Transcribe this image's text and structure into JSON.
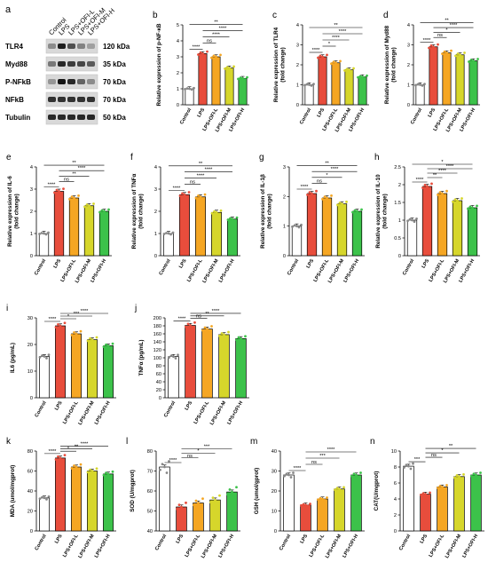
{
  "group_labels": [
    "Control",
    "LPS",
    "LPS+OFI-L",
    "LPS+OFI-M",
    "LPS+OFI-H"
  ],
  "colors": {
    "control": "#ffffff",
    "lps": "#e84d3c",
    "ofi_l": "#f5a623",
    "ofi_m": "#d6d62b",
    "ofi_h": "#3cc24a"
  },
  "blot": {
    "label": "a",
    "lanes": [
      "Control",
      "LPS",
      "LPS+OFI-L",
      "LPS+OFI-M",
      "LPS+OFI-H"
    ],
    "bands": [
      {
        "name": "TLR4",
        "size": "120 kDa",
        "intensity": [
          0.35,
          0.9,
          0.65,
          0.4,
          0.25
        ]
      },
      {
        "name": "Myd88",
        "size": "35 kDa",
        "intensity": [
          0.45,
          0.85,
          0.75,
          0.7,
          0.6
        ]
      },
      {
        "name": "P-NFkB",
        "size": "70 kDa",
        "intensity": [
          0.3,
          0.95,
          0.85,
          0.55,
          0.35
        ]
      },
      {
        "name": "NFkB",
        "size": "70 kDa",
        "intensity": [
          0.8,
          0.8,
          0.8,
          0.8,
          0.8
        ]
      },
      {
        "name": "Tubulin",
        "size": "50 kDa",
        "intensity": [
          0.85,
          0.85,
          0.85,
          0.85,
          0.85
        ]
      }
    ]
  },
  "chart_data": [
    {
      "type": "bar",
      "label": "b",
      "ylabel": "Relative expression of p-NF-κB",
      "ylim": [
        0,
        5
      ],
      "yticks": [
        0,
        1,
        2,
        3,
        4,
        5
      ],
      "categories": [
        "Control",
        "LPS",
        "LPS+OFI-L",
        "LPS+OFI-M",
        "LPS+OFI-H"
      ],
      "values": [
        1.0,
        3.2,
        3.0,
        2.3,
        1.65
      ],
      "significance": [
        [
          "Control",
          "LPS",
          "****"
        ],
        [
          "LPS",
          "LPS+OFI-L",
          "ns"
        ],
        [
          "LPS",
          "LPS+OFI-M",
          "****"
        ],
        [
          "LPS",
          "LPS+OFI-H",
          "****"
        ],
        [
          "Control",
          "LPS+OFI-H",
          "**"
        ]
      ]
    },
    {
      "type": "bar",
      "label": "c",
      "ylabel": "Relative expression of TLR4 (fold change)",
      "ylim": [
        0,
        4
      ],
      "yticks": [
        0,
        1,
        2,
        3,
        4
      ],
      "categories": [
        "Control",
        "LPS",
        "LPS+OFI-L",
        "LPS+OFI-M",
        "LPS+OFI-H"
      ],
      "values": [
        1.0,
        2.4,
        2.1,
        1.75,
        1.4
      ],
      "significance": [
        [
          "Control",
          "LPS",
          "****"
        ],
        [
          "LPS",
          "LPS+OFI-L",
          "*"
        ],
        [
          "LPS",
          "LPS+OFI-M",
          "****"
        ],
        [
          "LPS",
          "LPS+OFI-H",
          "****"
        ],
        [
          "Control",
          "LPS+OFI-H",
          "**"
        ]
      ]
    },
    {
      "type": "bar",
      "label": "d",
      "ylabel": "Relative expression of Myd88 (fold change)",
      "ylim": [
        0,
        4
      ],
      "yticks": [
        0,
        1,
        2,
        3,
        4
      ],
      "categories": [
        "Control",
        "LPS",
        "LPS+OFI-L",
        "LPS+OFI-M",
        "LPS+OFI-H"
      ],
      "values": [
        1.0,
        2.9,
        2.6,
        2.5,
        2.2
      ],
      "significance": [
        [
          "Control",
          "LPS",
          "****"
        ],
        [
          "LPS",
          "LPS+OFI-L",
          "ns"
        ],
        [
          "LPS",
          "LPS+OFI-M",
          "*"
        ],
        [
          "LPS",
          "LPS+OFI-H",
          "****"
        ],
        [
          "Control",
          "LPS+OFI-H",
          "**"
        ]
      ]
    },
    {
      "type": "bar",
      "label": "e",
      "ylabel": "Relative expression of IL-6 (fold change)",
      "ylim": [
        0,
        4
      ],
      "yticks": [
        0,
        1,
        2,
        3,
        4
      ],
      "categories": [
        "Control",
        "LPS",
        "LPS+OFI-L",
        "LPS+OFI-M",
        "LPS+OFI-H"
      ],
      "values": [
        1.0,
        2.9,
        2.6,
        2.25,
        2.0
      ],
      "significance": [
        [
          "Control",
          "LPS",
          "****"
        ],
        [
          "LPS",
          "LPS+OFI-L",
          "ns"
        ],
        [
          "LPS",
          "LPS+OFI-M",
          "**"
        ],
        [
          "LPS",
          "LPS+OFI-H",
          "****"
        ],
        [
          "Control",
          "LPS+OFI-H",
          "**"
        ]
      ]
    },
    {
      "type": "bar",
      "label": "f",
      "ylabel": "Relative expression of TNFα (fold change)",
      "ylim": [
        0,
        4
      ],
      "yticks": [
        0,
        1,
        2,
        3,
        4
      ],
      "categories": [
        "Control",
        "LPS",
        "LPS+OFI-L",
        "LPS+OFI-M",
        "LPS+OFI-H"
      ],
      "values": [
        1.0,
        2.75,
        2.65,
        1.95,
        1.65
      ],
      "significance": [
        [
          "Control",
          "LPS",
          "****"
        ],
        [
          "LPS",
          "LPS+OFI-L",
          "ns"
        ],
        [
          "LPS",
          "LPS+OFI-M",
          "****"
        ],
        [
          "LPS",
          "LPS+OFI-H",
          "****"
        ],
        [
          "Control",
          "LPS+OFI-H",
          "**"
        ]
      ]
    },
    {
      "type": "bar",
      "label": "g",
      "ylabel": "Relative expression of IL-1β (fold change)",
      "ylim": [
        0,
        3
      ],
      "yticks": [
        0,
        1,
        2,
        3
      ],
      "categories": [
        "Control",
        "LPS",
        "LPS+OFI-L",
        "LPS+OFI-M",
        "LPS+OFI-H"
      ],
      "values": [
        1.0,
        2.1,
        1.95,
        1.75,
        1.5
      ],
      "significance": [
        [
          "Control",
          "LPS",
          "****"
        ],
        [
          "LPS",
          "LPS+OFI-L",
          "ns"
        ],
        [
          "LPS",
          "LPS+OFI-M",
          "*"
        ],
        [
          "LPS",
          "LPS+OFI-H",
          "****"
        ],
        [
          "Control",
          "LPS+OFI-H",
          "**"
        ]
      ]
    },
    {
      "type": "bar",
      "label": "h",
      "ylabel": "Relative expression of IL-10 (fold change)",
      "ylim": [
        0,
        2.5
      ],
      "yticks": [
        0.0,
        0.5,
        1.0,
        1.5,
        2.0,
        2.5
      ],
      "categories": [
        "Control",
        "LPS",
        "LPS+OFI-L",
        "LPS+OFI-M",
        "LPS+OFI-H"
      ],
      "values": [
        1.0,
        1.95,
        1.75,
        1.55,
        1.35
      ],
      "significance": [
        [
          "Control",
          "LPS",
          "****"
        ],
        [
          "LPS",
          "LPS+OFI-L",
          "**"
        ],
        [
          "LPS",
          "LPS+OFI-M",
          "****"
        ],
        [
          "LPS",
          "LPS+OFI-H",
          "****"
        ],
        [
          "Control",
          "LPS+OFI-H",
          "*"
        ]
      ]
    },
    {
      "type": "bar",
      "label": "i",
      "ylabel": "IL6 (pg/mL)",
      "ylim": [
        0,
        30
      ],
      "yticks": [
        0,
        10,
        20,
        30
      ],
      "categories": [
        "Control",
        "LPS",
        "LPS+OFI-L",
        "LPS+OFI-M",
        "LPS+OFI-H"
      ],
      "values": [
        15.5,
        27.0,
        24.0,
        21.8,
        19.5
      ],
      "significance": [
        [
          "Control",
          "LPS",
          "****"
        ],
        [
          "LPS",
          "LPS+OFI-L",
          "*"
        ],
        [
          "LPS",
          "LPS+OFI-M",
          "***"
        ],
        [
          "LPS",
          "LPS+OFI-H",
          "****"
        ]
      ]
    },
    {
      "type": "bar",
      "label": "j",
      "ylabel": "TNFα (pg/mL)",
      "ylim": [
        0,
        200
      ],
      "yticks": [
        0,
        20,
        40,
        60,
        80,
        100,
        120,
        140,
        160,
        180,
        200
      ],
      "categories": [
        "Control",
        "LPS",
        "LPS+OFI-L",
        "LPS+OFI-M",
        "LPS+OFI-H"
      ],
      "values": [
        103,
        181,
        172,
        158,
        148
      ],
      "significance": [
        [
          "Control",
          "LPS",
          "****"
        ],
        [
          "LPS",
          "LPS+OFI-L",
          "ns"
        ],
        [
          "LPS",
          "LPS+OFI-M",
          "**"
        ],
        [
          "LPS",
          "LPS+OFI-H",
          "****"
        ]
      ]
    },
    {
      "type": "bar",
      "label": "k",
      "ylabel": "MDA (umol/mgprot)",
      "ylim": [
        0,
        80
      ],
      "yticks": [
        0,
        20,
        40,
        60,
        80
      ],
      "categories": [
        "Control",
        "LPS",
        "LPS+OFI-L",
        "LPS+OFI-M",
        "LPS+OFI-H"
      ],
      "values": [
        33,
        73,
        64,
        60,
        57
      ],
      "significance": [
        [
          "Control",
          "LPS",
          "****"
        ],
        [
          "LPS",
          "LPS+OFI-L",
          "*"
        ],
        [
          "LPS",
          "LPS+OFI-M",
          "**"
        ],
        [
          "LPS",
          "LPS+OFI-H",
          "****"
        ]
      ]
    },
    {
      "type": "bar",
      "label": "l",
      "ylabel": "SOD (U/mgprot)",
      "ylim": [
        40,
        80
      ],
      "yticks": [
        40,
        50,
        60,
        70,
        80
      ],
      "categories": [
        "Control",
        "LPS",
        "LPS+OFI-L",
        "LPS+OFI-M",
        "LPS+OFI-H"
      ],
      "values": [
        72,
        52,
        54,
        55.5,
        59.5
      ],
      "significance": [
        [
          "Control",
          "LPS",
          "****"
        ],
        [
          "LPS",
          "LPS+OFI-L",
          "ns"
        ],
        [
          "LPS",
          "LPS+OFI-M",
          "*"
        ],
        [
          "LPS",
          "LPS+OFI-H",
          "***"
        ]
      ]
    },
    {
      "type": "bar",
      "label": "m",
      "ylabel": "GSH (umol/gprot)",
      "ylim": [
        0,
        40
      ],
      "yticks": [
        0,
        10,
        20,
        30,
        40
      ],
      "categories": [
        "Control",
        "LPS",
        "LPS+OFI-L",
        "LPS+OFI-M",
        "LPS+OFI-H"
      ],
      "values": [
        28,
        13,
        16,
        21,
        28
      ],
      "significance": [
        [
          "Control",
          "LPS",
          "****"
        ],
        [
          "LPS",
          "LPS+OFI-L",
          "ns"
        ],
        [
          "LPS",
          "LPS+OFI-M",
          "***"
        ],
        [
          "LPS",
          "LPS+OFI-H",
          "****"
        ]
      ]
    },
    {
      "type": "bar",
      "label": "n",
      "ylabel": "CAT(U/mgprot)",
      "ylim": [
        0,
        10
      ],
      "yticks": [
        0,
        2,
        4,
        6,
        8,
        10
      ],
      "categories": [
        "Control",
        "LPS",
        "LPS+OFI-L",
        "LPS+OFI-M",
        "LPS+OFI-H"
      ],
      "values": [
        8.1,
        4.6,
        5.5,
        6.8,
        7.0
      ],
      "significance": [
        [
          "Control",
          "LPS",
          "***"
        ],
        [
          "LPS",
          "LPS+OFI-L",
          "ns"
        ],
        [
          "LPS",
          "LPS+OFI-M",
          "*"
        ],
        [
          "LPS",
          "LPS+OFI-H",
          "**"
        ]
      ]
    }
  ]
}
